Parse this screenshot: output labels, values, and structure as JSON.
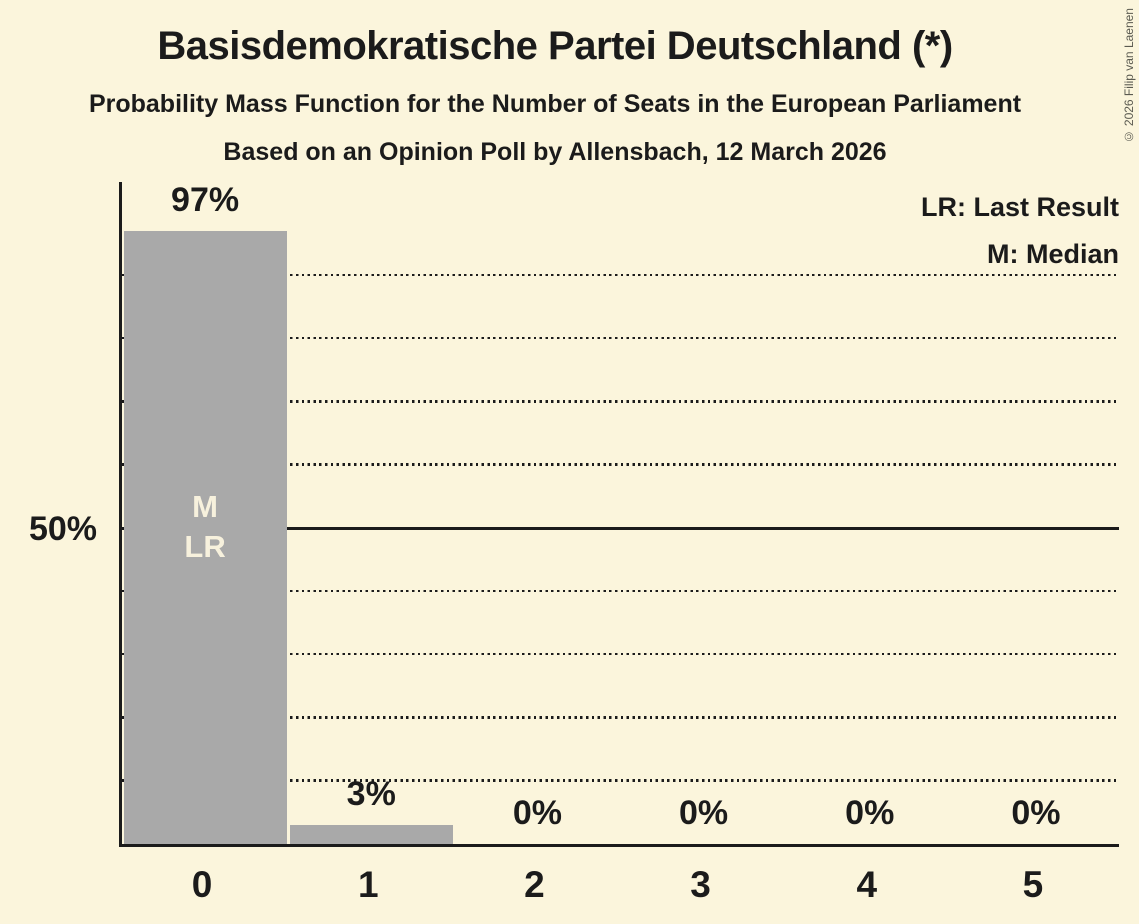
{
  "header": {
    "title": "Basisdemokratische Partei Deutschland (*)",
    "subtitle": "Probability Mass Function for the Number of Seats in the European Parliament",
    "poll_info": "Based on an Opinion Poll by Allensbach, 12 March 2026"
  },
  "copyright": "© 2026 Filip van Laenen",
  "legend": {
    "last_result": "LR: Last Result",
    "median": "M: Median"
  },
  "y_axis": {
    "label_50": "50%"
  },
  "chart_data": {
    "type": "bar",
    "title": "Basisdemokratische Partei Deutschland (*)",
    "categories": [
      "0",
      "1",
      "2",
      "3",
      "4",
      "5"
    ],
    "values": [
      97,
      3,
      0,
      0,
      0,
      0
    ],
    "value_labels": [
      "97%",
      "3%",
      "0%",
      "0%",
      "0%",
      "0%"
    ],
    "ylim": [
      0,
      100
    ],
    "gridlines": {
      "interval": 10,
      "solid_at": 50,
      "dotted": [
        10,
        20,
        30,
        40,
        60,
        70,
        80,
        90
      ]
    },
    "legend_position": "top-right",
    "annotations": [
      {
        "category": "0",
        "lines": [
          "M",
          "LR"
        ],
        "meaning": [
          "Median",
          "Last Result"
        ]
      }
    ],
    "colors": {
      "background": "#FBF5DC",
      "bar": "#A9A9A9",
      "text": "#1B1B1B",
      "bar_annotation_text": "#F7F1DD"
    }
  }
}
